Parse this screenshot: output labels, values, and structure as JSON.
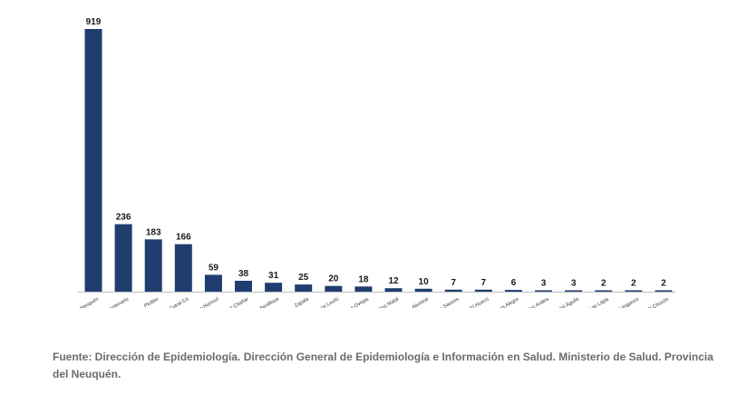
{
  "chart_data": {
    "type": "bar",
    "categories": [
      "Neuquén",
      "Centenario",
      "Plottier",
      "Cutral Có",
      "Plaza Huincul",
      "San Patricio del Chañar",
      "Senillosa",
      "Zapala",
      "Picún Leufú",
      "Las Ovejas",
      "Chos Malal",
      "Aluminé",
      "Rincón de los Sauces",
      "El Huecú",
      "Vista Alegre",
      "S.M. de los Andes",
      "Piedra del Águila",
      "Las Lajas",
      "Huinganco",
      "Villa El Chocón"
    ],
    "values": [
      919,
      236,
      183,
      166,
      59,
      38,
      31,
      25,
      20,
      18,
      12,
      10,
      7,
      7,
      6,
      3,
      3,
      2,
      2,
      2
    ],
    "ylim": [
      0,
      919
    ],
    "colors": {
      "bar": "#1f3d6e",
      "axis": "#bfbfbf"
    },
    "grid": false,
    "legend": "none"
  },
  "caption": "Fuente: Dirección de Epidemiología. Dirección General de Epidemiología e Información en Salud. Ministerio de Salud. Provincia del Neuquén."
}
